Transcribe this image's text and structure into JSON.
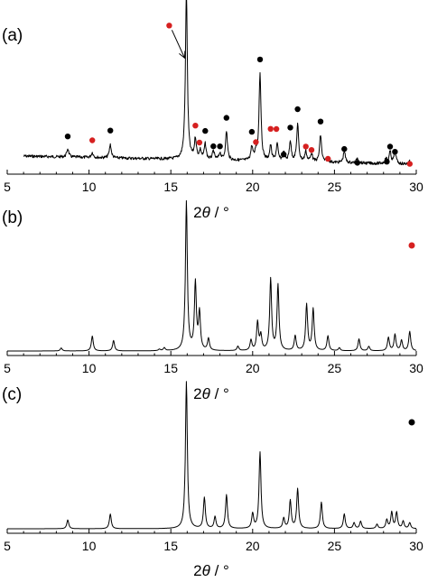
{
  "colors": {
    "black_marker": "#000000",
    "red_marker": "#d62020",
    "trace": "#000000"
  },
  "xlabel": "2θ / °",
  "chart_data": [
    {
      "type": "line",
      "panel_label": "(a)",
      "xlabel": "2θ / °",
      "xlim": [
        5,
        30
      ],
      "x_ticks": [
        5,
        10,
        15,
        20,
        25,
        30
      ],
      "noisy": true,
      "baseline_slope": true,
      "arrow": {
        "from_x": 14.9,
        "to_x": 15.9
      },
      "peaks": [
        {
          "x": 8.7,
          "h": 0.05
        },
        {
          "x": 10.2,
          "h": 0.03
        },
        {
          "x": 11.3,
          "h": 0.08
        },
        {
          "x": 15.95,
          "h": 1.0
        },
        {
          "x": 16.5,
          "h": 0.12
        },
        {
          "x": 16.8,
          "h": 0.05
        },
        {
          "x": 17.1,
          "h": 0.09
        },
        {
          "x": 17.6,
          "h": 0.05
        },
        {
          "x": 18.0,
          "h": 0.04
        },
        {
          "x": 18.4,
          "h": 0.17
        },
        {
          "x": 19.95,
          "h": 0.08
        },
        {
          "x": 20.2,
          "h": 0.05
        },
        {
          "x": 20.45,
          "h": 0.52
        },
        {
          "x": 21.1,
          "h": 0.09
        },
        {
          "x": 21.5,
          "h": 0.1
        },
        {
          "x": 21.9,
          "h": 0.05
        },
        {
          "x": 22.3,
          "h": 0.12
        },
        {
          "x": 22.75,
          "h": 0.22
        },
        {
          "x": 23.25,
          "h": 0.06
        },
        {
          "x": 23.6,
          "h": 0.05
        },
        {
          "x": 24.15,
          "h": 0.16
        },
        {
          "x": 24.6,
          "h": 0.02
        },
        {
          "x": 25.6,
          "h": 0.07
        },
        {
          "x": 26.4,
          "h": 0.03
        },
        {
          "x": 28.15,
          "h": 0.03
        },
        {
          "x": 28.4,
          "h": 0.07
        },
        {
          "x": 28.7,
          "h": 0.08
        },
        {
          "x": 29.6,
          "h": 0.02
        }
      ],
      "markers": [
        {
          "x": 8.7,
          "y": 0.09,
          "color": "black"
        },
        {
          "x": 10.2,
          "y": 0.07,
          "color": "red"
        },
        {
          "x": 11.3,
          "y": 0.13,
          "color": "black"
        },
        {
          "x": 14.9,
          "y": 0.76,
          "color": "red"
        },
        {
          "x": 15.95,
          "y": 1.03,
          "color": "black"
        },
        {
          "x": 16.5,
          "y": 0.17,
          "color": "red"
        },
        {
          "x": 16.75,
          "y": 0.07,
          "color": "red"
        },
        {
          "x": 17.1,
          "y": 0.14,
          "color": "black"
        },
        {
          "x": 17.6,
          "y": 0.05,
          "color": "black"
        },
        {
          "x": 18.0,
          "y": 0.05,
          "color": "black"
        },
        {
          "x": 18.4,
          "y": 0.22,
          "color": "black"
        },
        {
          "x": 19.95,
          "y": 0.14,
          "color": "black"
        },
        {
          "x": 20.2,
          "y": 0.08,
          "color": "red"
        },
        {
          "x": 20.45,
          "y": 0.57,
          "color": "black"
        },
        {
          "x": 21.1,
          "y": 0.16,
          "color": "red"
        },
        {
          "x": 21.45,
          "y": 0.16,
          "color": "red"
        },
        {
          "x": 21.9,
          "y": 0.01,
          "color": "black"
        },
        {
          "x": 22.3,
          "y": 0.17,
          "color": "black"
        },
        {
          "x": 22.75,
          "y": 0.28,
          "color": "black"
        },
        {
          "x": 23.25,
          "y": 0.06,
          "color": "red"
        },
        {
          "x": 23.6,
          "y": 0.04,
          "color": "red"
        },
        {
          "x": 24.15,
          "y": 0.21,
          "color": "black"
        },
        {
          "x": 24.6,
          "y": -0.01,
          "color": "red"
        },
        {
          "x": 25.6,
          "y": 0.05,
          "color": "black"
        },
        {
          "x": 26.4,
          "y": -0.03,
          "color": "black"
        },
        {
          "x": 28.2,
          "y": -0.02,
          "color": "black"
        },
        {
          "x": 28.4,
          "y": 0.07,
          "color": "black"
        },
        {
          "x": 28.7,
          "y": 0.04,
          "color": "black"
        },
        {
          "x": 29.6,
          "y": -0.03,
          "color": "red"
        }
      ],
      "legend_marker": null
    },
    {
      "type": "line",
      "panel_label": "(b)",
      "xlabel": "2θ / °",
      "xlim": [
        5,
        30
      ],
      "x_ticks": [
        5,
        10,
        15,
        20,
        25,
        30
      ],
      "noisy": false,
      "baseline_slope": false,
      "arrow": null,
      "peaks": [
        {
          "x": 8.3,
          "h": 0.02
        },
        {
          "x": 10.2,
          "h": 0.1
        },
        {
          "x": 11.5,
          "h": 0.07
        },
        {
          "x": 14.3,
          "h": 0.01
        },
        {
          "x": 14.6,
          "h": 0.02
        },
        {
          "x": 15.95,
          "h": 1.0
        },
        {
          "x": 16.5,
          "h": 0.45
        },
        {
          "x": 16.75,
          "h": 0.25
        },
        {
          "x": 17.3,
          "h": 0.08
        },
        {
          "x": 19.1,
          "h": 0.03
        },
        {
          "x": 19.9,
          "h": 0.07
        },
        {
          "x": 20.3,
          "h": 0.19
        },
        {
          "x": 20.5,
          "h": 0.1
        },
        {
          "x": 21.1,
          "h": 0.48
        },
        {
          "x": 21.55,
          "h": 0.44
        },
        {
          "x": 22.6,
          "h": 0.1
        },
        {
          "x": 23.3,
          "h": 0.31
        },
        {
          "x": 23.7,
          "h": 0.28
        },
        {
          "x": 24.6,
          "h": 0.1
        },
        {
          "x": 25.3,
          "h": 0.02
        },
        {
          "x": 26.5,
          "h": 0.08
        },
        {
          "x": 27.1,
          "h": 0.03
        },
        {
          "x": 28.3,
          "h": 0.09
        },
        {
          "x": 28.7,
          "h": 0.11
        },
        {
          "x": 29.1,
          "h": 0.07
        },
        {
          "x": 29.6,
          "h": 0.13
        }
      ],
      "markers": [],
      "legend_marker": "red"
    },
    {
      "type": "line",
      "panel_label": "(c)",
      "xlabel": "2θ / °",
      "xlim": [
        5,
        30
      ],
      "x_ticks": [
        5,
        10,
        15,
        20,
        25,
        30
      ],
      "noisy": false,
      "baseline_slope": false,
      "arrow": null,
      "peaks": [
        {
          "x": 8.7,
          "h": 0.06
        },
        {
          "x": 11.3,
          "h": 0.1
        },
        {
          "x": 15.95,
          "h": 1.0
        },
        {
          "x": 17.05,
          "h": 0.21
        },
        {
          "x": 17.7,
          "h": 0.08
        },
        {
          "x": 18.4,
          "h": 0.23
        },
        {
          "x": 20.0,
          "h": 0.1
        },
        {
          "x": 20.45,
          "h": 0.52
        },
        {
          "x": 21.9,
          "h": 0.07
        },
        {
          "x": 22.3,
          "h": 0.19
        },
        {
          "x": 22.75,
          "h": 0.27
        },
        {
          "x": 24.2,
          "h": 0.18
        },
        {
          "x": 25.6,
          "h": 0.1
        },
        {
          "x": 26.2,
          "h": 0.04
        },
        {
          "x": 26.6,
          "h": 0.05
        },
        {
          "x": 27.6,
          "h": 0.03
        },
        {
          "x": 28.2,
          "h": 0.06
        },
        {
          "x": 28.5,
          "h": 0.11
        },
        {
          "x": 28.8,
          "h": 0.11
        },
        {
          "x": 29.2,
          "h": 0.05
        },
        {
          "x": 29.6,
          "h": 0.04
        }
      ],
      "markers": [],
      "legend_marker": "black"
    }
  ]
}
